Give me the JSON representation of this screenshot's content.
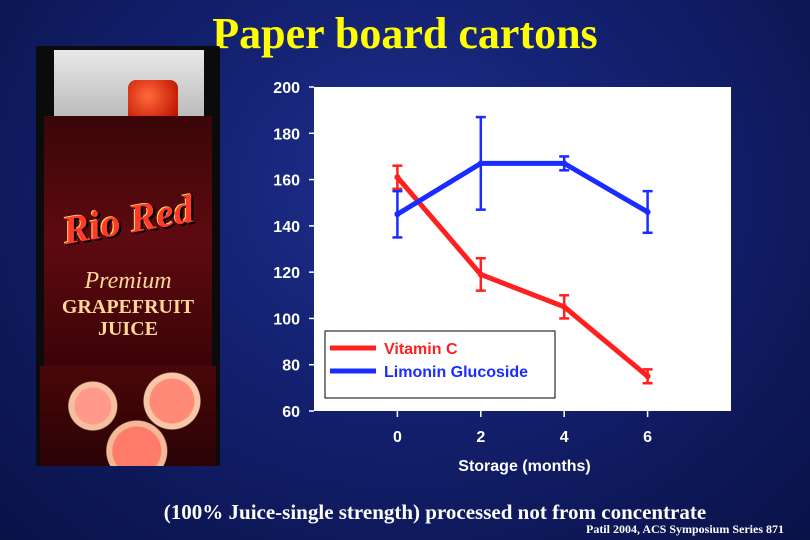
{
  "slide": {
    "title": "Paper board cartons",
    "caption": "(100% Juice-single strength) processed not from concentrate",
    "citation": "Patil 2004, ACS Symposium Series 871"
  },
  "image": {
    "description_icon": "juice-carton-photo",
    "brand": "Rio Red",
    "product_line": "Premium",
    "product_name": "GRAPEFRUIT JUICE"
  },
  "chart_data": {
    "type": "line",
    "title": "",
    "xlabel": "Storage (months)",
    "ylabel": "",
    "x": [
      0,
      2,
      4,
      6
    ],
    "xlim": [
      -2,
      8
    ],
    "ylim": [
      60,
      200
    ],
    "yticks": [
      60,
      80,
      100,
      120,
      140,
      160,
      180,
      200
    ],
    "xticks": [
      0,
      2,
      4,
      6
    ],
    "grid": false,
    "legend_position": "bottom-left",
    "series": [
      {
        "name": "Vitamin C",
        "color": "#ff2020",
        "values": [
          161,
          119,
          105,
          75
        ],
        "errors": [
          5,
          7,
          5,
          3
        ]
      },
      {
        "name": "Limonin Glucoside",
        "color": "#1a2cff",
        "values": [
          145,
          167,
          167,
          146
        ],
        "errors": [
          10,
          20,
          3,
          9
        ]
      }
    ]
  }
}
